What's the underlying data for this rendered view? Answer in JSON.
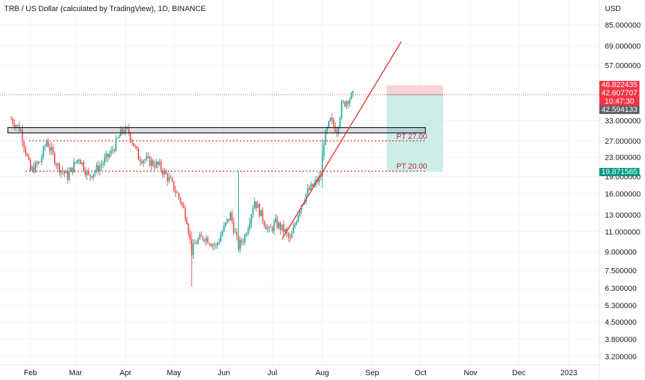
{
  "header": {
    "title": "TRB / US Dollar (calculated by TradingView), 1D, BINANCE",
    "currency": "USD"
  },
  "colors": {
    "up": "#26a69a",
    "down": "#ef5350",
    "grid": "#f0f3fa",
    "trendline": "#e53935",
    "level_dotted": "#e53935",
    "stop_zone": "#f8d4d4",
    "target_zone": "#cdeee8",
    "last_price_badge": "#5d606b",
    "stop_badge": "#f23645",
    "target_badge": "#089981"
  },
  "chart_data": {
    "type": "candlestick",
    "scale": "log",
    "y_range": [
      3.0,
      100.0
    ],
    "x_range": [
      "2022-01-18",
      "2023-01-31"
    ],
    "y_ticks": [
      "85.000000",
      "69.000000",
      "57.000000",
      "33.000000",
      "27.000000",
      "23.000000",
      "19.000000",
      "16.000000",
      "13.000000",
      "11.000000",
      "9.000000",
      "7.500000",
      "6.300000",
      "5.300000",
      "4.500000",
      "3.800000",
      "3.200000"
    ],
    "x_ticks": [
      "Feb",
      "Mar",
      "Apr",
      "May",
      "Jun",
      "Jul",
      "Aug",
      "Sep",
      "Oct",
      "Nov",
      "Dec",
      "2023"
    ],
    "price_labels": {
      "stop": "46.822435",
      "entry": "42.607707",
      "countdown": "10:47:30",
      "last": "42.594133",
      "target": "19.871565"
    },
    "annotations": {
      "pt1": "PT 27.00",
      "pt2": "PT 20.00"
    },
    "anchors": [
      [
        "2022-01-20",
        33.5
      ],
      [
        "2022-01-26",
        30
      ],
      [
        "2022-02-01",
        20
      ],
      [
        "2022-02-07",
        22
      ],
      [
        "2022-02-11",
        27
      ],
      [
        "2022-02-18",
        21
      ],
      [
        "2022-02-24",
        19
      ],
      [
        "2022-03-03",
        23
      ],
      [
        "2022-03-09",
        19
      ],
      [
        "2022-03-16",
        21
      ],
      [
        "2022-03-23",
        24
      ],
      [
        "2022-03-30",
        30
      ],
      [
        "2022-04-03",
        29.5
      ],
      [
        "2022-04-09",
        23
      ],
      [
        "2022-04-16",
        22
      ],
      [
        "2022-04-22",
        21
      ],
      [
        "2022-04-29",
        18
      ],
      [
        "2022-05-05",
        15
      ],
      [
        "2022-05-09",
        12.5
      ],
      [
        "2022-05-12",
        9
      ],
      [
        "2022-05-15",
        10
      ],
      [
        "2022-05-20",
        10.5
      ],
      [
        "2022-05-27",
        9.5
      ],
      [
        "2022-05-31",
        11
      ],
      [
        "2022-06-05",
        13
      ],
      [
        "2022-06-10",
        9.5
      ],
      [
        "2022-06-14",
        10.5
      ],
      [
        "2022-06-20",
        15
      ],
      [
        "2022-06-24",
        13
      ],
      [
        "2022-06-29",
        11
      ],
      [
        "2022-07-03",
        12
      ],
      [
        "2022-07-09",
        11
      ],
      [
        "2022-07-12",
        10
      ],
      [
        "2022-07-18",
        14
      ],
      [
        "2022-07-22",
        16
      ],
      [
        "2022-07-27",
        17.5
      ],
      [
        "2022-07-31",
        19
      ],
      [
        "2022-08-02",
        27
      ],
      [
        "2022-08-06",
        33
      ],
      [
        "2022-08-10",
        30
      ],
      [
        "2022-08-13",
        38
      ],
      [
        "2022-08-17",
        41
      ],
      [
        "2022-08-21",
        42.6
      ]
    ],
    "trendline": [
      [
        "2022-07-07",
        10.2
      ],
      [
        "2022-09-19",
        72
      ]
    ],
    "resistance_box": [
      29.2,
      30.8
    ],
    "resistance_box_range": [
      "2022-01-18",
      "2022-10-04"
    ],
    "level_27": {
      "value": 27.0,
      "from": "2022-01-31",
      "to": "2022-10-04"
    },
    "level_20": {
      "value": 20.0,
      "from": "2022-01-29",
      "to": "2022-10-04"
    },
    "current_price_line": 42.6,
    "position": {
      "from": "2022-09-10",
      "to": "2022-10-15",
      "stop": 46.82,
      "entry": 42.6,
      "target": 19.87
    }
  }
}
